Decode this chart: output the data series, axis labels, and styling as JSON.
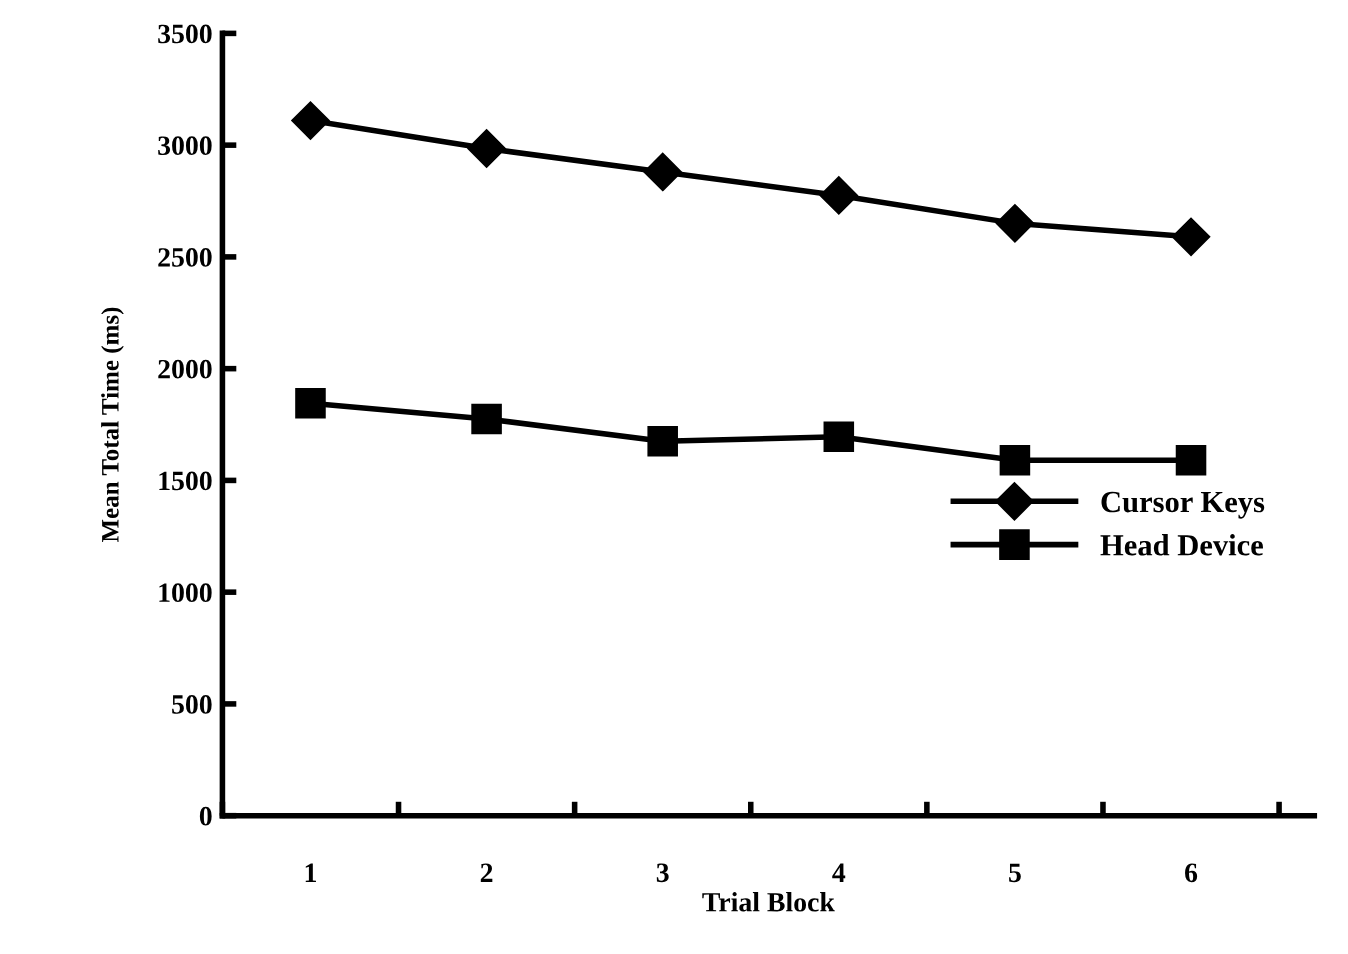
{
  "chart_data": {
    "type": "line",
    "xlabel": "Trial Block",
    "ylabel": "Mean Total Time (ms)",
    "categories": [
      "1",
      "2",
      "3",
      "4",
      "5",
      "6"
    ],
    "series": [
      {
        "name": "Cursor Keys",
        "color": "#000000",
        "marker": "diamond",
        "values": [
          3110,
          2985,
          2880,
          2775,
          2650,
          2590
        ]
      },
      {
        "name": "Head Device",
        "color": "#000000",
        "marker": "square",
        "values": [
          1845,
          1775,
          1675,
          1695,
          1590,
          1590
        ]
      }
    ],
    "ylim": [
      0,
      3500
    ],
    "yticks": [
      0,
      500,
      1000,
      1500,
      2000,
      2500,
      3000,
      3500
    ],
    "grid": false,
    "legend": "right",
    "line_style": "solid"
  }
}
